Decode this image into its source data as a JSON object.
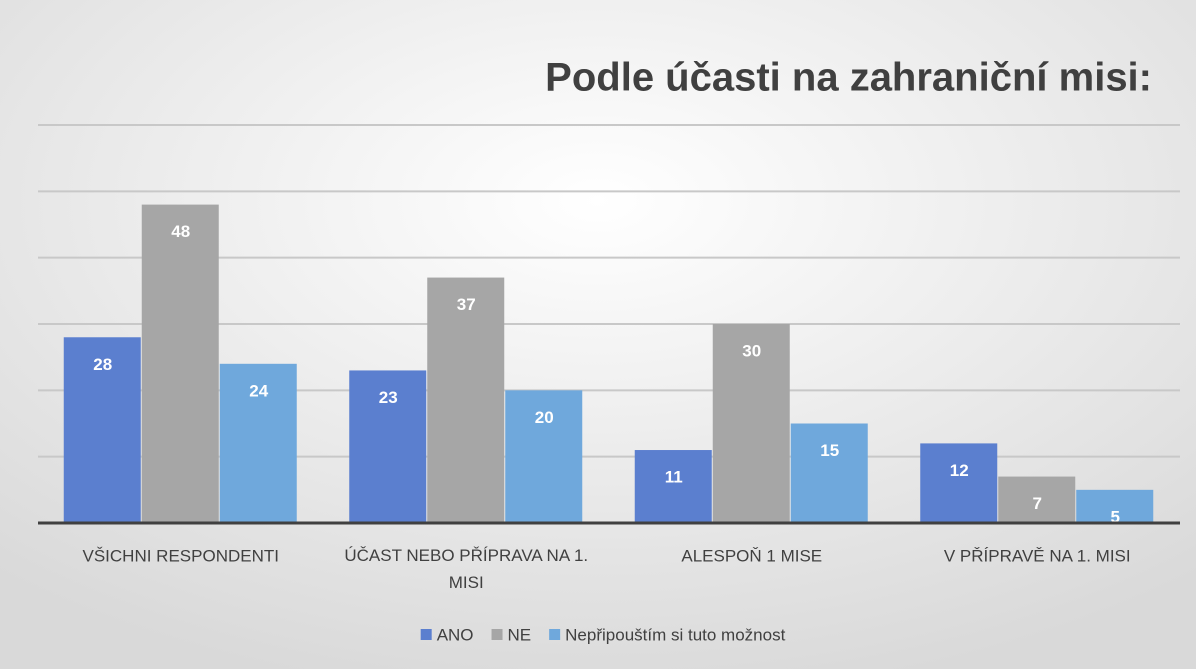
{
  "chart_data": {
    "type": "bar",
    "title": "Podle účasti na zahraniční misi:",
    "categories": [
      "VŠICHNI RESPONDENTI",
      "ÚČAST NEBO PŘÍPRAVA NA 1. MISI",
      "ALESPOŇ 1 MISE",
      "V PŘÍPRAVĚ NA 1. MISI"
    ],
    "series": [
      {
        "name": "ANO",
        "color": "#5b7fcf",
        "values": [
          28,
          23,
          11,
          12
        ]
      },
      {
        "name": "NE",
        "color": "#a6a6a6",
        "values": [
          48,
          37,
          30,
          7
        ]
      },
      {
        "name": "Nepřipouštím si tuto možnost",
        "color": "#6fa8dc",
        "values": [
          24,
          20,
          15,
          5
        ]
      }
    ],
    "ylim": [
      0,
      60
    ],
    "yticks": [
      0,
      10,
      20,
      30,
      40,
      50,
      60
    ],
    "grid": true,
    "legend": "bottom"
  }
}
